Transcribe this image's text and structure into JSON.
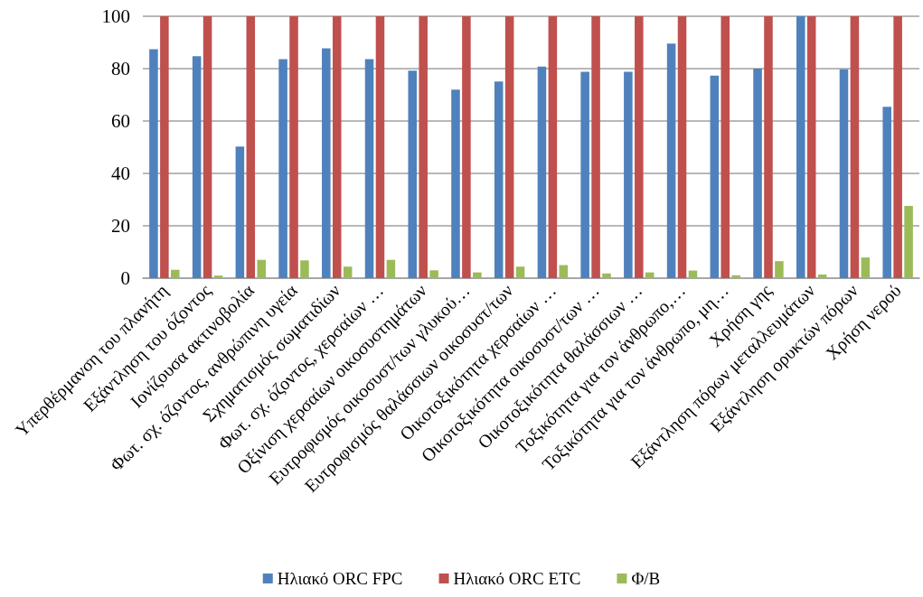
{
  "chart_data": {
    "type": "bar",
    "categories": [
      "Υπερθέρμανση του πλανήτη",
      "Εξάντληση του όζοντος",
      "Ιονίζουσα ακτινοβολία",
      "Φωτ. σχ. όζοντος, ανθρώπινη υγεία",
      "Σχηματισμός σωματιδίων",
      "Φωτ. σχ. όζοντος, χερσαίων …",
      "Οξίνιση χερσαίων οικοσυστημάτων",
      "Ευτροφισμός οικοσυστ/των γλυκού…",
      "Ευτροφισμός θαλάσσιων οικοσυστ/των",
      "Οικοτοξικότητα χερσαίων …",
      "Οικοτοξικότητα οικοσυστ/των …",
      "Οικοτοξικότητα θαλάσσιων …",
      "Τοξικότητα για τον άνθρωπο,…",
      "Τοξικότητα για τον άνθρωπο, μη…",
      "Χρήση γης",
      "Εξάντληση πόρων μεταλλευμάτων",
      "Εξάντληση ορυκτών πόρων",
      "Χρήση νερού"
    ],
    "series": [
      {
        "name": "Ηλιακό ORC FPC",
        "color": "#4f81bd",
        "values": [
          87.4,
          84.7,
          50.3,
          83.6,
          87.8,
          83.6,
          79.2,
          72,
          75.1,
          80.8,
          78.8,
          78.8,
          89.6,
          77.3,
          80,
          100,
          79.7,
          65.4
        ]
      },
      {
        "name": "Ηλιακό ORC ETC",
        "color": "#c0504d",
        "values": [
          100,
          100,
          100,
          100,
          100,
          100,
          100,
          100,
          100,
          100,
          100,
          100,
          100,
          100,
          100,
          100,
          100,
          100
        ]
      },
      {
        "name": "Φ/Β",
        "color": "#9bbb59",
        "values": [
          3.2,
          1,
          7,
          6.8,
          4.4,
          7,
          3,
          2.2,
          4.4,
          5,
          1.8,
          2.2,
          2.9,
          1.1,
          6.5,
          1.4,
          7.9,
          27.6
        ]
      }
    ],
    "ylim": [
      0,
      100
    ],
    "yticks": [
      0,
      20,
      40,
      60,
      80,
      100
    ],
    "grid": "y",
    "legend": "bottom"
  }
}
